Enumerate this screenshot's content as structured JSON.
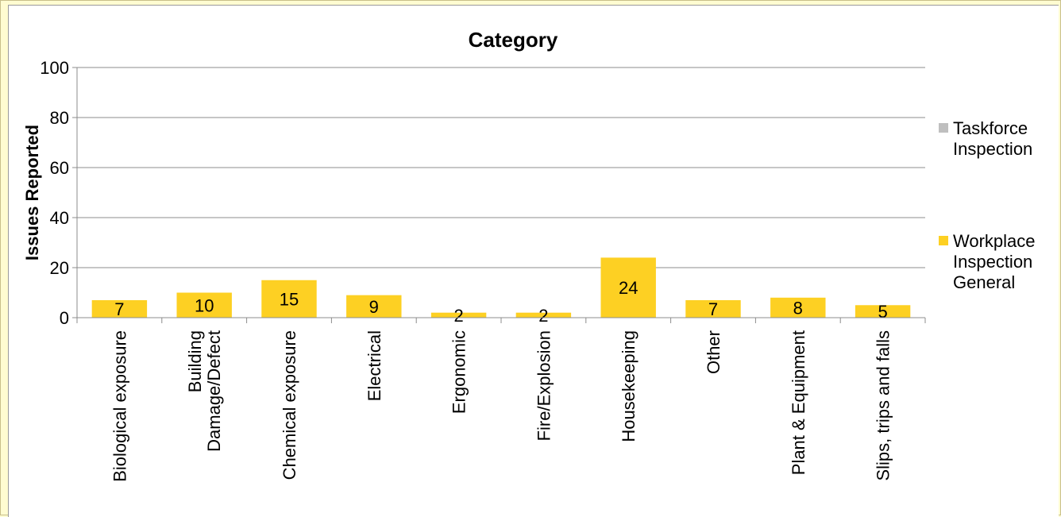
{
  "chart_data": {
    "type": "bar",
    "title": "Category",
    "xlabel": "",
    "ylabel": "Issues Reported",
    "ylim": [
      0,
      100
    ],
    "yticks": [
      0,
      20,
      40,
      60,
      80,
      100
    ],
    "grid": true,
    "legend_position": "right",
    "categories": [
      [
        "Biological exposure"
      ],
      [
        "Building",
        "Damage/Defect"
      ],
      [
        "Chemical exposure"
      ],
      [
        "Electrical"
      ],
      [
        "Ergonomic"
      ],
      [
        "Fire/Explosion"
      ],
      [
        "Housekeeping"
      ],
      [
        "Other"
      ],
      [
        "Plant & Equipment"
      ],
      [
        "Slips, trips and falls"
      ]
    ],
    "series": [
      {
        "name": [
          "Taskforce",
          "Inspection"
        ],
        "color": "#bfbfbf",
        "values": [
          0,
          0,
          0,
          0,
          0,
          0,
          0,
          0,
          0,
          0
        ]
      },
      {
        "name": [
          "Workplace",
          "Inspection",
          "General"
        ],
        "color": "#fdd023",
        "values": [
          7,
          10,
          15,
          9,
          2,
          2,
          24,
          7,
          8,
          5
        ]
      }
    ]
  }
}
